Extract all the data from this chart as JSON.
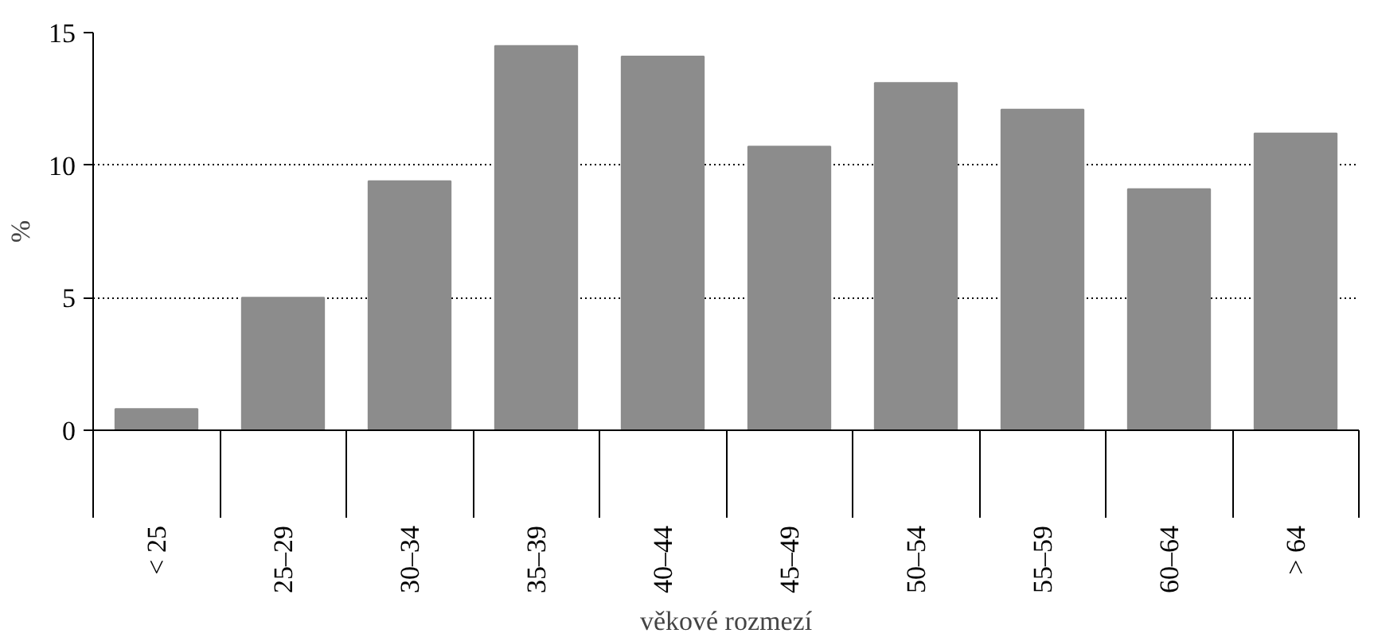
{
  "chart_data": {
    "type": "bar",
    "xlabel": "věkové rozmezí",
    "ylabel": "%",
    "categories": [
      "< 25",
      "25–29",
      "30–34",
      "35–39",
      "40–44",
      "45–49",
      "50–54",
      "55–59",
      "60–64",
      "> 64"
    ],
    "values": [
      0.8,
      5.0,
      9.4,
      14.5,
      14.1,
      10.7,
      13.1,
      12.1,
      9.1,
      11.2
    ],
    "color": "#8c8c8c",
    "ylim": [
      0,
      15
    ],
    "yticks": [
      0,
      5,
      10,
      15
    ],
    "grid": "y"
  }
}
